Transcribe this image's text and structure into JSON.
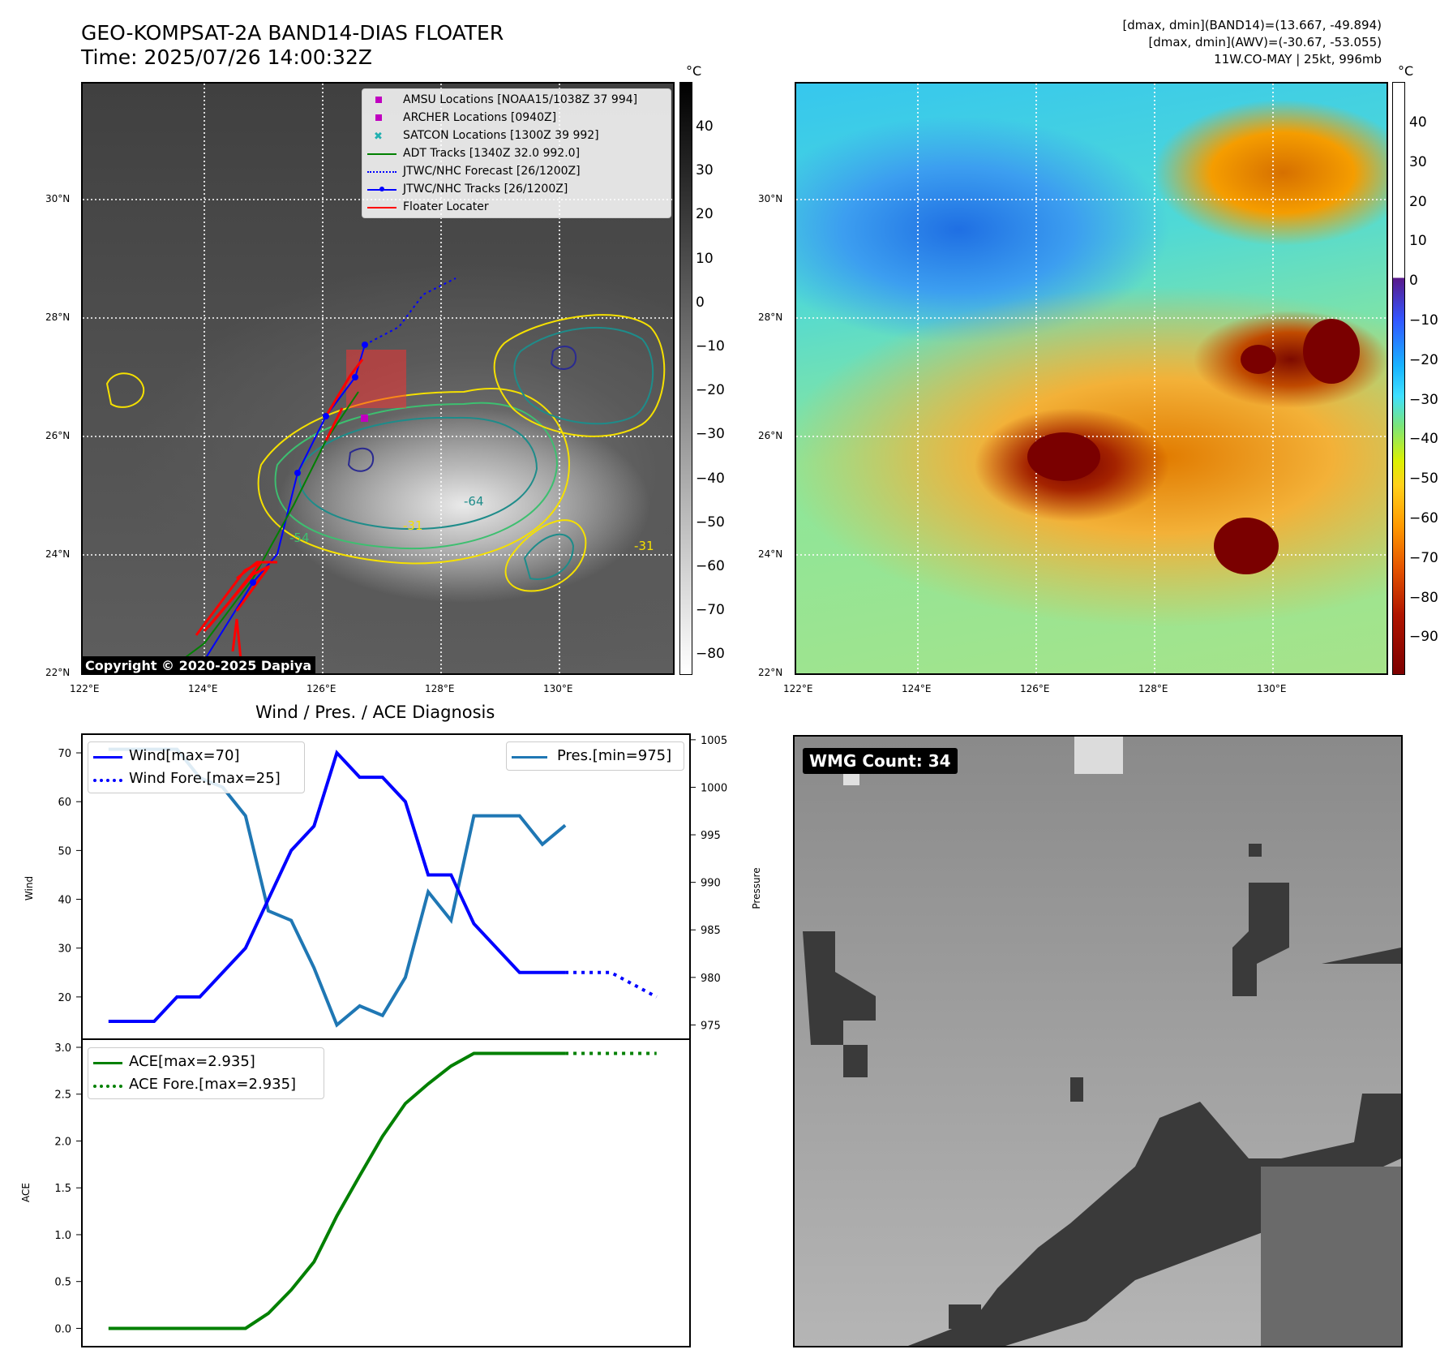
{
  "header": {
    "title": "GEO-KOMPSAT-2A BAND14-DIAS FLOATER",
    "time": "Time: 2025/07/26 14:00:32Z",
    "dmax_band14": "[dmax, dmin](BAND14)=(13.667, -49.894)",
    "dmax_awv": "[dmax, dmin](AWV)=(-30.67, -53.055)",
    "storm": "11W.CO-MAY | 25kt, 996mb"
  },
  "maps": {
    "lat_ticks": [
      "30°N",
      "28°N",
      "26°N",
      "24°N",
      "22°N"
    ],
    "lon_ticks": [
      "122°E",
      "124°E",
      "126°E",
      "128°E",
      "130°E"
    ],
    "unit": "°C",
    "cbar1_ticks": [
      "40",
      "30",
      "20",
      "10",
      "0",
      "−10",
      "−20",
      "−30",
      "−40",
      "−50",
      "−60",
      "−70",
      "−80"
    ],
    "cbar2_ticks": [
      "40",
      "30",
      "20",
      "10",
      "0",
      "−10",
      "−20",
      "−30",
      "−40",
      "−50",
      "−60",
      "−70",
      "−80",
      "−90"
    ],
    "copyright": "Copyright © 2020-2025 Dapiya",
    "legend": [
      {
        "label": "AMSU Locations [NOAA15/1038Z 37 994]",
        "color": "#c000c0"
      },
      {
        "label": "ARCHER Locations [0940Z]",
        "color": "#c000c0"
      },
      {
        "label": "SATCON Locations [1300Z 39 992]",
        "color": "#20b0b0"
      },
      {
        "label": "ADT Tracks [1340Z 32.0 992.0]",
        "color": "#008000"
      },
      {
        "label": "JTWC/NHC Forecast [26/1200Z]",
        "color": "#0000ff"
      },
      {
        "label": "JTWC/NHC Tracks [26/1200Z]",
        "color": "#0000ff"
      },
      {
        "label": "Floater Locater",
        "color": "#ff0000"
      }
    ],
    "contour_labels": [
      "-54",
      "-31",
      "-64",
      "-31"
    ]
  },
  "diagnosis": {
    "title": "Wind / Pres. / ACE Diagnosis",
    "wind_axis_label": "Wind",
    "pres_axis_label": "Pressure",
    "ace_axis_label": "ACE",
    "legend_wind": "Wind[max=70]",
    "legend_wind_fore": "Wind Fore.[max=25]",
    "legend_pres": "Pres.[min=975]",
    "legend_ace": "ACE[max=2.935]",
    "legend_ace_fore": "ACE Fore.[max=2.935]",
    "colors": {
      "wind": "#0000ff",
      "pres": "#1f77b4",
      "ace": "#008000"
    }
  },
  "chart_data": {
    "type": "line",
    "x": [
      0,
      1,
      2,
      3,
      4,
      5,
      6,
      7,
      8,
      9,
      10,
      11,
      12,
      13,
      14,
      15,
      16,
      17,
      18,
      19,
      20
    ],
    "series": [
      {
        "name": "Wind[max=70]",
        "values": [
          15,
          15,
          15,
          20,
          20,
          25,
          30,
          40,
          50,
          55,
          70,
          65,
          65,
          60,
          45,
          45,
          35,
          30,
          25,
          25,
          25
        ]
      },
      {
        "name": "Wind Fore.[max=25]",
        "x": [
          20,
          21,
          22,
          23,
          24
        ],
        "values": [
          25,
          25,
          25,
          22.5,
          20
        ]
      },
      {
        "name": "Pres.[min=975]",
        "values": [
          1004,
          1004,
          1004,
          1004,
          1001,
          1000,
          997,
          987,
          986,
          981,
          975,
          977,
          976,
          980,
          989,
          986,
          997,
          997,
          997,
          994,
          996
        ]
      },
      {
        "name": "ACE[max=2.935]",
        "values": [
          0,
          0,
          0,
          0,
          0,
          0,
          0,
          0.16,
          0.41,
          0.71,
          1.2,
          1.63,
          2.05,
          2.4,
          2.61,
          2.8,
          2.935,
          2.935,
          2.935,
          2.935,
          2.935
        ]
      },
      {
        "name": "ACE Fore.[max=2.935]",
        "x": [
          20,
          21,
          22,
          23,
          24
        ],
        "values": [
          2.935,
          2.935,
          2.935,
          2.935,
          2.935
        ]
      }
    ],
    "wind_ylim": [
      13,
      72
    ],
    "wind_ticks": [
      20,
      30,
      40,
      50,
      60,
      70
    ],
    "pres_ylim": [
      973.5,
      1005.5
    ],
    "pres_ticks": [
      975,
      980,
      985,
      990,
      995,
      1000,
      1005
    ],
    "ace_ylim": [
      -0.1,
      3.0
    ],
    "ace_ticks": [
      "0.0",
      "0.5",
      "1.0",
      "1.5",
      "2.0",
      "2.5",
      "3.0"
    ],
    "xlim": [
      -1.2,
      25.5
    ]
  },
  "wmg": {
    "label": "WMG Count: 34"
  }
}
